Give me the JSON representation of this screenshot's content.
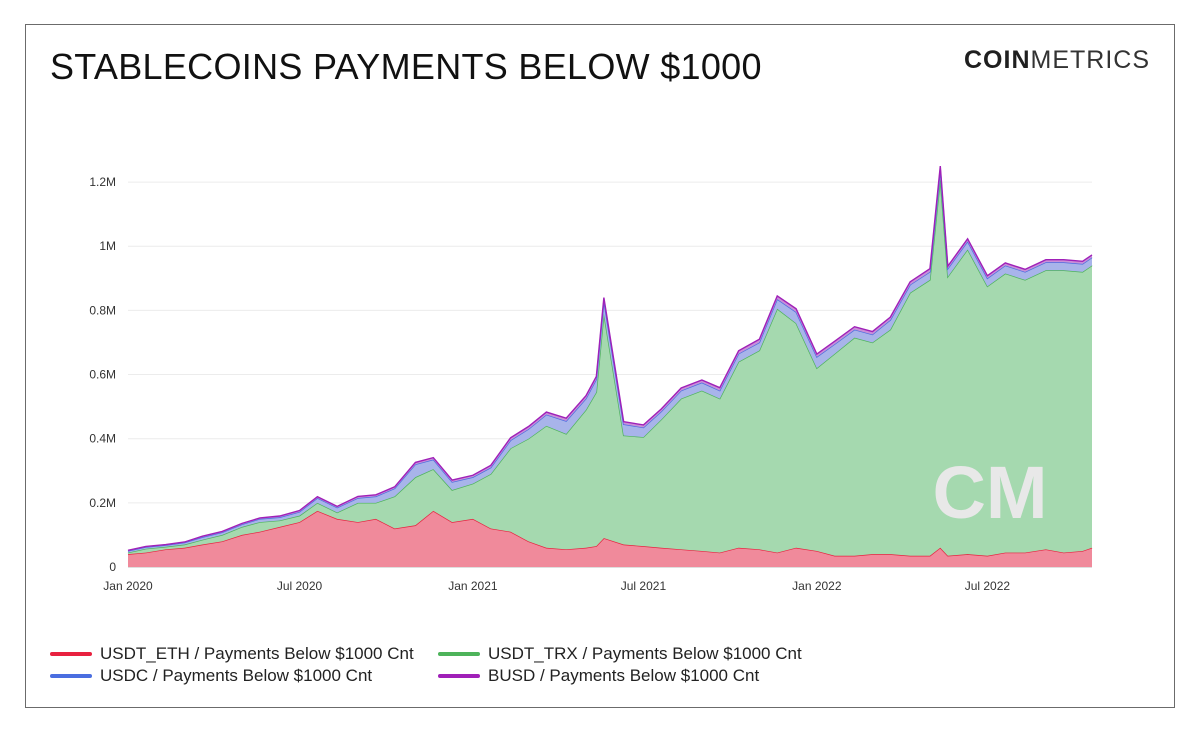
{
  "header": {
    "title": "STABLECOINS PAYMENTS BELOW $1000",
    "logo_bold": "COIN",
    "logo_light": "METRICS"
  },
  "watermark": "CM",
  "colors": {
    "USDT_ETH": "#e8213f",
    "USDT_TRX": "#4db35a",
    "USDC": "#4a6ee0",
    "BUSD": "#a020b8",
    "USDT_ETH_fill": "#f08a9b",
    "USDT_TRX_fill": "#a5d9af",
    "USDC_fill": "#a8b4ea",
    "BUSD_fill": "#c98fd8"
  },
  "chart_data": {
    "type": "area",
    "stacked": true,
    "title": "STABLECOINS PAYMENTS BELOW $1000",
    "xlabel": "",
    "ylabel": "",
    "ylim": [
      0,
      1300000
    ],
    "yticks": [
      0,
      200000,
      400000,
      600000,
      800000,
      1000000,
      1200000
    ],
    "ytick_labels": [
      "0",
      "0.2M",
      "0.4M",
      "0.6M",
      "0.8M",
      "1M",
      "1.2M"
    ],
    "xticks": [
      "2020-01-01",
      "2020-07-01",
      "2021-01-01",
      "2021-07-01",
      "2022-01-01",
      "2022-07-01"
    ],
    "xtick_labels": [
      "Jan 2020",
      "Jul 2020",
      "Jan 2021",
      "Jul 2021",
      "Jan 2022",
      "Jul 2022"
    ],
    "x": [
      "2020-01-01",
      "2020-01-20",
      "2020-02-10",
      "2020-03-01",
      "2020-03-20",
      "2020-04-10",
      "2020-05-01",
      "2020-05-20",
      "2020-06-10",
      "2020-07-01",
      "2020-07-20",
      "2020-08-10",
      "2020-09-01",
      "2020-09-20",
      "2020-10-10",
      "2020-11-01",
      "2020-11-20",
      "2020-12-10",
      "2021-01-01",
      "2021-01-20",
      "2021-02-10",
      "2021-03-01",
      "2021-03-20",
      "2021-04-10",
      "2021-05-01",
      "2021-05-12",
      "2021-05-20",
      "2021-06-10",
      "2021-07-01",
      "2021-07-20",
      "2021-08-10",
      "2021-09-01",
      "2021-09-20",
      "2021-10-10",
      "2021-11-01",
      "2021-11-20",
      "2021-12-10",
      "2022-01-01",
      "2022-01-20",
      "2022-02-10",
      "2022-03-01",
      "2022-03-20",
      "2022-04-10",
      "2022-05-01",
      "2022-05-12",
      "2022-05-20",
      "2022-06-10",
      "2022-07-01",
      "2022-07-20",
      "2022-08-10",
      "2022-09-01",
      "2022-09-20",
      "2022-10-10",
      "2022-10-20"
    ],
    "series": [
      {
        "name": "USDT_ETH / Payments Below $1000 Cnt",
        "values": [
          40000,
          45000,
          55000,
          60000,
          70000,
          80000,
          100000,
          110000,
          125000,
          140000,
          175000,
          150000,
          140000,
          150000,
          120000,
          130000,
          175000,
          140000,
          150000,
          120000,
          110000,
          80000,
          60000,
          55000,
          60000,
          65000,
          90000,
          70000,
          65000,
          60000,
          55000,
          50000,
          45000,
          60000,
          55000,
          45000,
          60000,
          50000,
          35000,
          35000,
          40000,
          40000,
          35000,
          35000,
          60000,
          35000,
          40000,
          35000,
          45000,
          45000,
          55000,
          45000,
          50000,
          60000
        ]
      },
      {
        "name": "USDT_TRX / Payments Below $1000 Cnt",
        "values": [
          5000,
          12000,
          8000,
          10000,
          15000,
          20000,
          25000,
          30000,
          20000,
          20000,
          25000,
          20000,
          60000,
          50000,
          100000,
          150000,
          130000,
          100000,
          110000,
          170000,
          260000,
          320000,
          380000,
          360000,
          430000,
          480000,
          700000,
          340000,
          340000,
          400000,
          470000,
          500000,
          480000,
          580000,
          620000,
          760000,
          700000,
          570000,
          630000,
          680000,
          660000,
          700000,
          820000,
          860000,
          1150000,
          870000,
          950000,
          840000,
          870000,
          850000,
          870000,
          880000,
          870000,
          880000
        ]
      },
      {
        "name": "USDC / Payments Below $1000 Cnt",
        "values": [
          5000,
          5000,
          5000,
          6000,
          8000,
          8000,
          8000,
          10000,
          10000,
          12000,
          15000,
          15000,
          15000,
          20000,
          25000,
          40000,
          30000,
          25000,
          20000,
          20000,
          25000,
          30000,
          35000,
          40000,
          35000,
          40000,
          40000,
          35000,
          30000,
          25000,
          25000,
          25000,
          25000,
          25000,
          25000,
          30000,
          35000,
          35000,
          30000,
          25000,
          25000,
          30000,
          25000,
          25000,
          30000,
          25000,
          25000,
          25000,
          25000,
          25000,
          25000,
          25000,
          25000,
          25000
        ]
      },
      {
        "name": "BUSD / Payments Below $1000 Cnt",
        "values": [
          2000,
          2000,
          2000,
          2000,
          3000,
          3000,
          3000,
          3000,
          4000,
          4000,
          4000,
          4000,
          5000,
          5000,
          5000,
          6000,
          6000,
          6000,
          6000,
          7000,
          8000,
          8000,
          8000,
          9000,
          9000,
          9000,
          10000,
          8000,
          8000,
          8000,
          8000,
          8000,
          9000,
          9000,
          10000,
          10000,
          10000,
          9000,
          9000,
          9000,
          9000,
          9000,
          9000,
          10000,
          10000,
          8000,
          8000,
          8000,
          8000,
          8000,
          8000,
          8000,
          8000,
          8000
        ]
      }
    ],
    "legend": "bottom-left",
    "grid": true
  }
}
